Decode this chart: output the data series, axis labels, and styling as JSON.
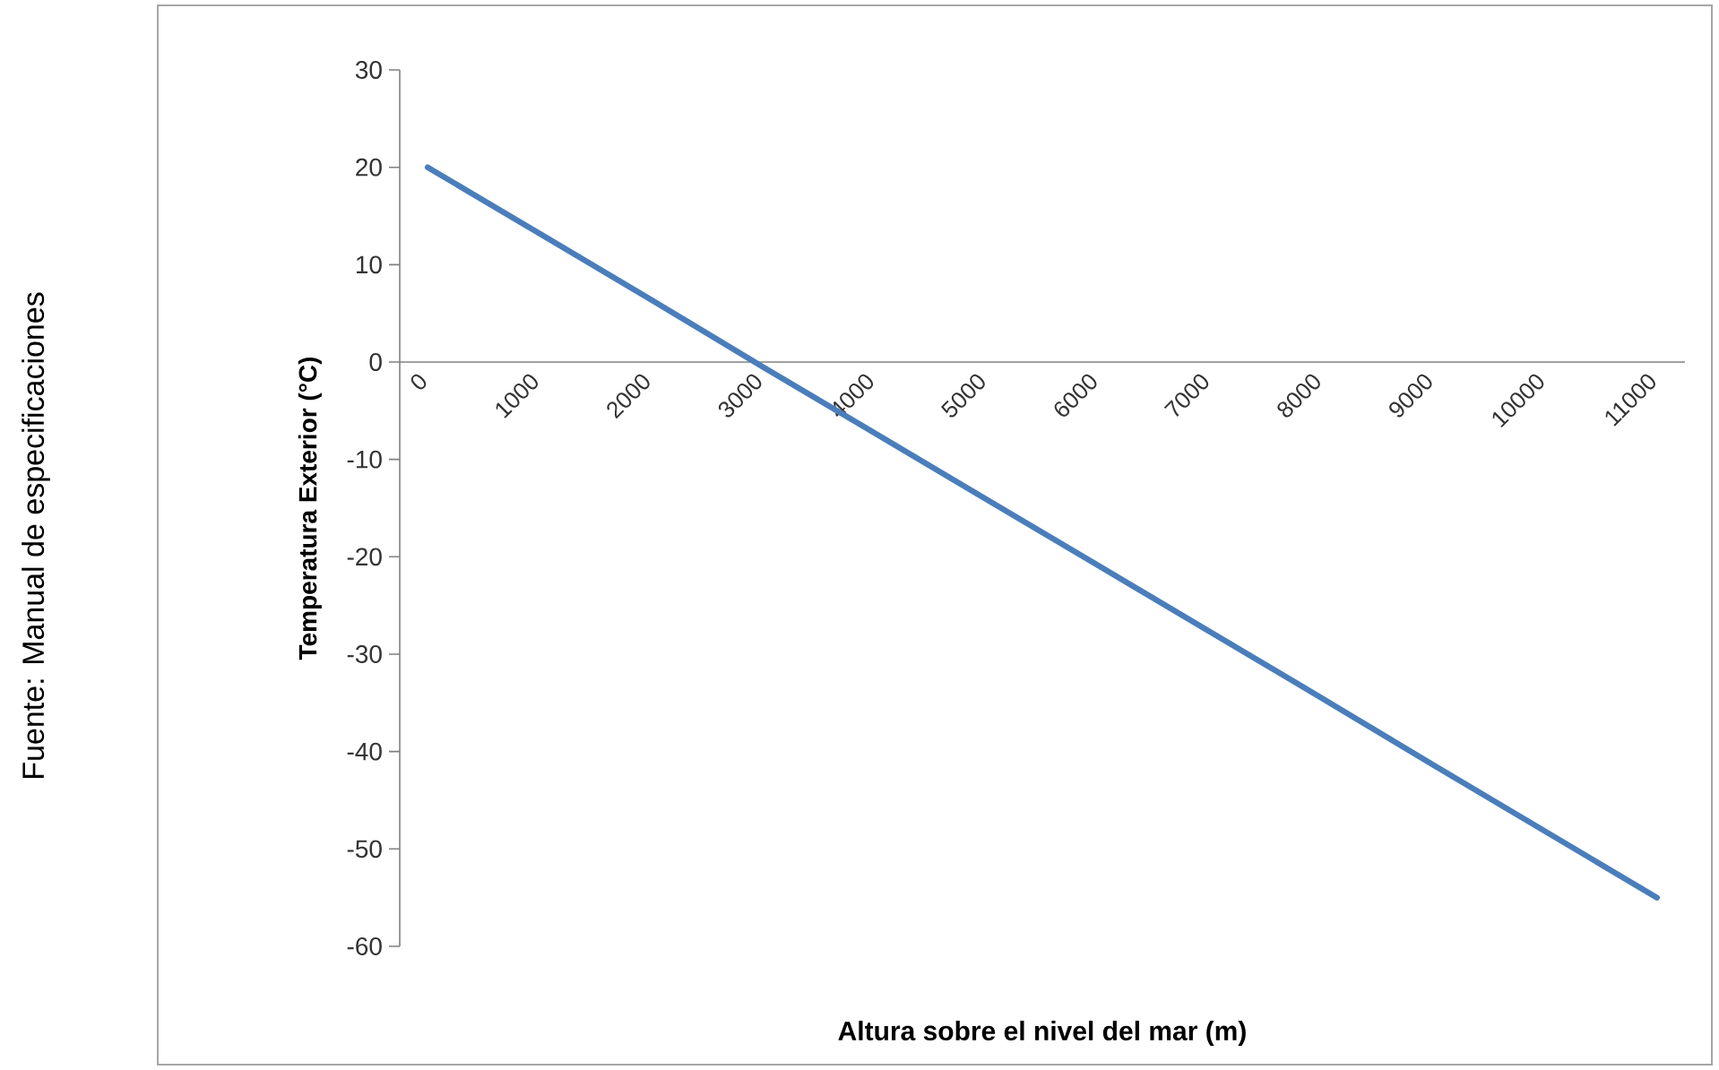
{
  "chart_data": {
    "type": "line",
    "xlabel": "Altura sobre el nivel del mar (m)",
    "ylabel": "Temperatura Exterior (°C)",
    "annotations": [
      "Fuente: Manual de especificaciones"
    ],
    "categories": [
      "0",
      "1000",
      "2000",
      "3000",
      "4000",
      "5000",
      "6000",
      "7000",
      "8000",
      "9000",
      "10000",
      "11000"
    ],
    "series": [
      {
        "color": "#4a7ebb",
        "values": [
          20,
          13.2,
          6.4,
          -0.5,
          -7.3,
          -14.1,
          -20.9,
          -27.7,
          -34.5,
          -41.4,
          -48.2,
          -55
        ]
      }
    ],
    "ylim": [
      -60,
      30
    ],
    "yticks": [
      -60,
      -50,
      -40,
      -30,
      -20,
      -10,
      0,
      10,
      20,
      30
    ],
    "grid": false,
    "marker": "none",
    "line_style": "solid"
  }
}
